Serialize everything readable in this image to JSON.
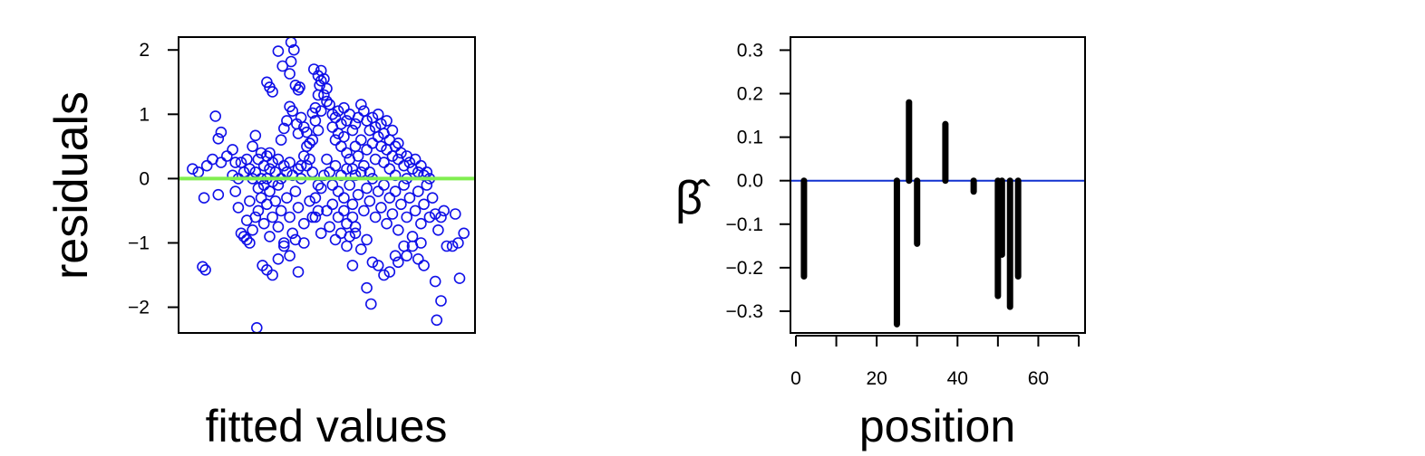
{
  "chart_data": [
    {
      "type": "scatter",
      "xlabel": "fitted values",
      "ylabel": "residuals",
      "ylim": [
        -2.4,
        2.2
      ],
      "y_ticks": [
        -2,
        -1,
        0,
        1,
        2
      ],
      "y_tick_labels": [
        "−2",
        "−1",
        "0",
        "1",
        "2"
      ],
      "x_ticks_shown": false,
      "x_range_note": "",
      "reference_line": {
        "y": 0,
        "color": "#80ee50"
      },
      "point_color": "#1010e8",
      "points": [
        [
          0.03,
          0.15
        ],
        [
          0.05,
          0.1
        ],
        [
          0.07,
          -0.3
        ],
        [
          0.08,
          0.2
        ],
        [
          0.1,
          0.3
        ],
        [
          0.11,
          0.97
        ],
        [
          0.12,
          0.62
        ],
        [
          0.13,
          0.72
        ],
        [
          0.12,
          -0.25
        ],
        [
          0.13,
          0.25
        ],
        [
          0.065,
          -1.37
        ],
        [
          0.075,
          -1.42
        ],
        [
          0.15,
          0.35
        ],
        [
          0.17,
          0.05
        ],
        [
          0.17,
          0.45
        ],
        [
          0.18,
          0.25
        ],
        [
          0.18,
          -0.2
        ],
        [
          0.19,
          0.0
        ],
        [
          0.19,
          -0.45
        ],
        [
          0.2,
          -0.85
        ],
        [
          0.2,
          0.25
        ],
        [
          0.21,
          -0.9
        ],
        [
          0.21,
          0.1
        ],
        [
          0.22,
          0.3
        ],
        [
          0.22,
          -0.95
        ],
        [
          0.22,
          -0.65
        ],
        [
          0.23,
          0.15
        ],
        [
          0.23,
          -1.0
        ],
        [
          0.23,
          -0.35
        ],
        [
          0.24,
          0.0
        ],
        [
          0.24,
          -0.8
        ],
        [
          0.24,
          0.5
        ],
        [
          0.25,
          0.1
        ],
        [
          0.25,
          -0.6
        ],
        [
          0.25,
          0.67
        ],
        [
          0.26,
          0.3
        ],
        [
          0.26,
          -0.15
        ],
        [
          0.26,
          -0.5
        ],
        [
          0.27,
          0.0
        ],
        [
          0.27,
          -0.3
        ],
        [
          0.27,
          0.4
        ],
        [
          0.28,
          0.2
        ],
        [
          0.28,
          -0.7
        ],
        [
          0.28,
          -0.1
        ],
        [
          0.29,
          0.35
        ],
        [
          0.29,
          -0.4
        ],
        [
          0.29,
          0.0
        ],
        [
          0.3,
          0.15
        ],
        [
          0.3,
          -0.9
        ],
        [
          0.3,
          -0.2
        ],
        [
          0.3,
          0.4
        ],
        [
          0.31,
          -0.05
        ],
        [
          0.31,
          -0.6
        ],
        [
          0.31,
          0.25
        ],
        [
          0.32,
          0.1
        ],
        [
          0.32,
          -0.35
        ],
        [
          0.33,
          0.3
        ],
        [
          0.33,
          -0.75
        ],
        [
          0.33,
          -0.1
        ],
        [
          0.34,
          0.0
        ],
        [
          0.34,
          -0.5
        ],
        [
          0.35,
          0.2
        ],
        [
          0.35,
          -1.0
        ],
        [
          0.36,
          -0.3
        ],
        [
          0.36,
          0.1
        ],
        [
          0.37,
          0.25
        ],
        [
          0.37,
          -0.6
        ],
        [
          0.38,
          0.05
        ],
        [
          0.38,
          -0.85
        ],
        [
          0.39,
          -0.2
        ],
        [
          0.4,
          0.15
        ],
        [
          0.4,
          -0.45
        ],
        [
          0.41,
          0.0
        ],
        [
          0.42,
          -0.7
        ],
        [
          0.43,
          0.2
        ],
        [
          0.44,
          -0.35
        ],
        [
          0.45,
          0.1
        ],
        [
          0.46,
          -0.6
        ],
        [
          0.47,
          -0.1
        ],
        [
          0.48,
          -0.85
        ],
        [
          0.255,
          -2.32
        ],
        [
          0.275,
          -1.35
        ],
        [
          0.29,
          -1.42
        ],
        [
          0.31,
          -1.5
        ],
        [
          0.33,
          -1.25
        ],
        [
          0.35,
          -1.05
        ],
        [
          0.37,
          -1.2
        ],
        [
          0.39,
          -0.95
        ],
        [
          0.4,
          -1.45
        ],
        [
          0.42,
          -1.0
        ],
        [
          0.29,
          1.5
        ],
        [
          0.3,
          1.42
        ],
        [
          0.31,
          1.35
        ],
        [
          0.33,
          1.98
        ],
        [
          0.345,
          1.75
        ],
        [
          0.375,
          2.12
        ],
        [
          0.37,
          1.63
        ],
        [
          0.375,
          1.82
        ],
        [
          0.385,
          2.0
        ],
        [
          0.39,
          1.45
        ],
        [
          0.4,
          1.38
        ],
        [
          0.405,
          1.42
        ],
        [
          0.37,
          1.12
        ],
        [
          0.38,
          1.05
        ],
        [
          0.36,
          0.9
        ],
        [
          0.35,
          0.78
        ],
        [
          0.34,
          0.6
        ],
        [
          0.395,
          0.85
        ],
        [
          0.4,
          0.7
        ],
        [
          0.41,
          0.95
        ],
        [
          0.42,
          0.8
        ],
        [
          0.43,
          0.72
        ],
        [
          0.44,
          0.55
        ],
        [
          0.45,
          0.6
        ],
        [
          0.45,
          1.02
        ],
        [
          0.46,
          1.1
        ],
        [
          0.46,
          0.9
        ],
        [
          0.47,
          1.3
        ],
        [
          0.47,
          0.75
        ],
        [
          0.48,
          1.05
        ],
        [
          0.455,
          1.7
        ],
        [
          0.47,
          1.6
        ],
        [
          0.475,
          1.45
        ],
        [
          0.48,
          1.52
        ],
        [
          0.49,
          1.55
        ],
        [
          0.48,
          1.68
        ],
        [
          0.5,
          1.4
        ],
        [
          0.49,
          1.3
        ],
        [
          0.5,
          1.2
        ],
        [
          0.51,
          1.15
        ],
        [
          0.52,
          1.0
        ],
        [
          0.52,
          0.8
        ],
        [
          0.53,
          0.95
        ],
        [
          0.53,
          0.6
        ],
        [
          0.54,
          1.05
        ],
        [
          0.54,
          0.7
        ],
        [
          0.55,
          0.85
        ],
        [
          0.55,
          0.5
        ],
        [
          0.56,
          1.1
        ],
        [
          0.56,
          0.65
        ],
        [
          0.57,
          0.9
        ],
        [
          0.57,
          0.4
        ],
        [
          0.58,
          1.0
        ],
        [
          0.58,
          0.3
        ],
        [
          0.59,
          0.75
        ],
        [
          0.59,
          0.15
        ],
        [
          0.6,
          0.85
        ],
        [
          0.6,
          0.5
        ],
        [
          0.61,
          0.95
        ],
        [
          0.61,
          0.35
        ],
        [
          0.62,
          1.15
        ],
        [
          0.62,
          0.6
        ],
        [
          0.63,
          1.05
        ],
        [
          0.63,
          0.2
        ],
        [
          0.64,
          0.9
        ],
        [
          0.64,
          0.45
        ],
        [
          0.65,
          0.75
        ],
        [
          0.65,
          0.1
        ],
        [
          0.66,
          0.95
        ],
        [
          0.66,
          0.55
        ],
        [
          0.67,
          0.8
        ],
        [
          0.67,
          0.3
        ],
        [
          0.68,
          1.0
        ],
        [
          0.68,
          0.65
        ],
        [
          0.69,
          0.5
        ],
        [
          0.69,
          0.85
        ],
        [
          0.7,
          0.7
        ],
        [
          0.7,
          0.25
        ],
        [
          0.71,
          0.9
        ],
        [
          0.71,
          0.45
        ],
        [
          0.72,
          0.6
        ],
        [
          0.72,
          0.15
        ],
        [
          0.73,
          0.75
        ],
        [
          0.73,
          0.35
        ],
        [
          0.74,
          0.5
        ],
        [
          0.74,
          0.05
        ],
        [
          0.75,
          0.55
        ],
        [
          0.75,
          0.3
        ],
        [
          0.76,
          0.4
        ],
        [
          0.77,
          0.2
        ],
        [
          0.78,
          0.35
        ],
        [
          0.78,
          0.0
        ],
        [
          0.79,
          0.25
        ],
        [
          0.8,
          0.15
        ],
        [
          0.81,
          0.3
        ],
        [
          0.82,
          0.1
        ],
        [
          0.83,
          0.2
        ],
        [
          0.84,
          0.05
        ],
        [
          0.85,
          0.1
        ],
        [
          0.86,
          0.0
        ],
        [
          0.5,
          0.3
        ],
        [
          0.51,
          0.1
        ],
        [
          0.52,
          -0.1
        ],
        [
          0.53,
          0.2
        ],
        [
          0.54,
          -0.2
        ],
        [
          0.55,
          0.05
        ],
        [
          0.56,
          -0.3
        ],
        [
          0.57,
          0.15
        ],
        [
          0.58,
          -0.1
        ],
        [
          0.59,
          -0.4
        ],
        [
          0.6,
          0.05
        ],
        [
          0.61,
          -0.25
        ],
        [
          0.62,
          0.1
        ],
        [
          0.63,
          -0.5
        ],
        [
          0.64,
          -0.15
        ],
        [
          0.65,
          -0.35
        ],
        [
          0.66,
          0.0
        ],
        [
          0.67,
          -0.6
        ],
        [
          0.68,
          -0.2
        ],
        [
          0.69,
          -0.45
        ],
        [
          0.7,
          -0.1
        ],
        [
          0.71,
          -0.7
        ],
        [
          0.72,
          -0.3
        ],
        [
          0.73,
          -0.55
        ],
        [
          0.74,
          -0.2
        ],
        [
          0.75,
          -0.8
        ],
        [
          0.76,
          -0.4
        ],
        [
          0.77,
          -0.1
        ],
        [
          0.78,
          -0.6
        ],
        [
          0.79,
          -0.3
        ],
        [
          0.8,
          -0.9
        ],
        [
          0.81,
          -0.5
        ],
        [
          0.82,
          -0.2
        ],
        [
          0.83,
          -0.7
        ],
        [
          0.84,
          -0.4
        ],
        [
          0.85,
          -0.1
        ],
        [
          0.86,
          -0.6
        ],
        [
          0.87,
          -0.3
        ],
        [
          0.88,
          -0.55
        ],
        [
          0.89,
          -0.8
        ],
        [
          0.9,
          -0.6
        ],
        [
          0.91,
          -0.5
        ],
        [
          0.92,
          -1.05
        ],
        [
          0.88,
          -1.6
        ],
        [
          0.9,
          -1.9
        ],
        [
          0.94,
          -1.05
        ],
        [
          0.95,
          -0.55
        ],
        [
          0.96,
          -1.0
        ],
        [
          0.885,
          -2.2
        ],
        [
          0.98,
          -0.85
        ],
        [
          0.965,
          -1.55
        ],
        [
          0.57,
          -1.05
        ],
        [
          0.59,
          -1.35
        ],
        [
          0.6,
          -0.85
        ],
        [
          0.62,
          -1.1
        ],
        [
          0.64,
          -0.95
        ],
        [
          0.64,
          -1.7
        ],
        [
          0.655,
          -1.95
        ],
        [
          0.66,
          -1.3
        ],
        [
          0.68,
          -1.35
        ],
        [
          0.7,
          -1.5
        ],
        [
          0.72,
          -1.45
        ],
        [
          0.74,
          -1.2
        ],
        [
          0.75,
          -1.3
        ],
        [
          0.77,
          -1.05
        ],
        [
          0.78,
          -1.2
        ],
        [
          0.8,
          -1.05
        ],
        [
          0.82,
          -1.25
        ],
        [
          0.83,
          -1.0
        ],
        [
          0.84,
          -1.35
        ],
        [
          0.45,
          -0.6
        ],
        [
          0.46,
          -0.3
        ],
        [
          0.47,
          -0.5
        ],
        [
          0.48,
          -0.15
        ],
        [
          0.49,
          0.05
        ],
        [
          0.44,
          0.3
        ],
        [
          0.43,
          0.5
        ],
        [
          0.42,
          0.35
        ],
        [
          0.41,
          0.2
        ],
        [
          0.5,
          -0.5
        ],
        [
          0.51,
          -0.75
        ],
        [
          0.52,
          -0.4
        ],
        [
          0.53,
          -0.95
        ],
        [
          0.54,
          -0.6
        ],
        [
          0.55,
          -0.85
        ],
        [
          0.56,
          -0.5
        ],
        [
          0.57,
          -0.7
        ],
        [
          0.58,
          -0.9
        ],
        [
          0.59,
          -0.6
        ],
        [
          0.6,
          -0.75
        ]
      ]
    },
    {
      "type": "bar",
      "subtype": "spike",
      "xlabel": "position",
      "ylabel": "β̂",
      "xlim": [
        0,
        70
      ],
      "ylim": [
        -0.35,
        0.33
      ],
      "x_ticks": [
        0,
        10,
        20,
        30,
        40,
        50,
        60,
        70
      ],
      "x_tick_labels": [
        "0",
        "",
        "20",
        "",
        "40",
        "",
        "60",
        ""
      ],
      "y_ticks": [
        -0.3,
        -0.2,
        -0.1,
        0.0,
        0.1,
        0.2,
        0.3
      ],
      "y_tick_labels": [
        "−0.3",
        "−0.2",
        "−0.1",
        "0.0",
        "0.1",
        "0.2",
        "0.3"
      ],
      "reference_line": {
        "y": 0,
        "color": "#1030d0"
      },
      "bar_color": "#000000",
      "x": [
        2,
        25,
        28,
        30,
        37,
        44,
        50,
        51,
        53,
        55
      ],
      "values": [
        -0.22,
        -0.33,
        0.18,
        -0.145,
        0.13,
        -0.025,
        -0.265,
        -0.17,
        -0.29,
        -0.22
      ]
    }
  ]
}
